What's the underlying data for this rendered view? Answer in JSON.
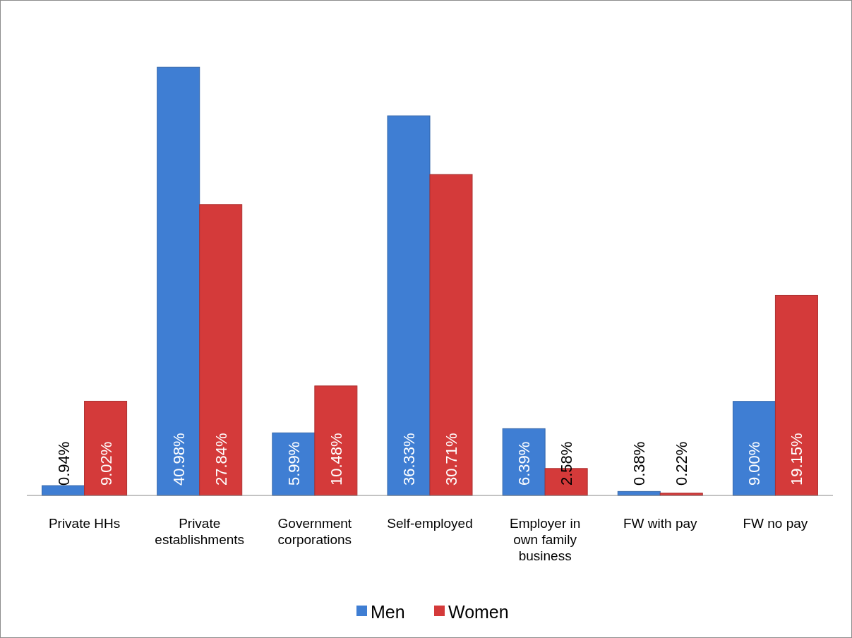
{
  "chart_data": {
    "type": "bar",
    "categories": [
      "Private HHs",
      "Private establishments",
      "Government corporations",
      "Self-employed",
      "Employer in own family business",
      "FW with pay",
      "FW no pay"
    ],
    "series": [
      {
        "name": "Men",
        "color": "#3f7ed3",
        "values": [
          0.94,
          40.98,
          5.99,
          36.33,
          6.39,
          0.38,
          9.0
        ],
        "value_labels": [
          "0.94%",
          "40.98%",
          "5.99%",
          "36.33%",
          "6.39%",
          "0.38%",
          "9.00%"
        ]
      },
      {
        "name": "Women",
        "color": "#d43a3a",
        "values": [
          9.02,
          27.84,
          10.48,
          30.71,
          2.58,
          0.22,
          19.15
        ],
        "value_labels": [
          "9.02%",
          "27.84%",
          "10.48%",
          "30.71%",
          "2.58%",
          "0.22%",
          "19.15%"
        ]
      }
    ],
    "legend": "bottom"
  }
}
